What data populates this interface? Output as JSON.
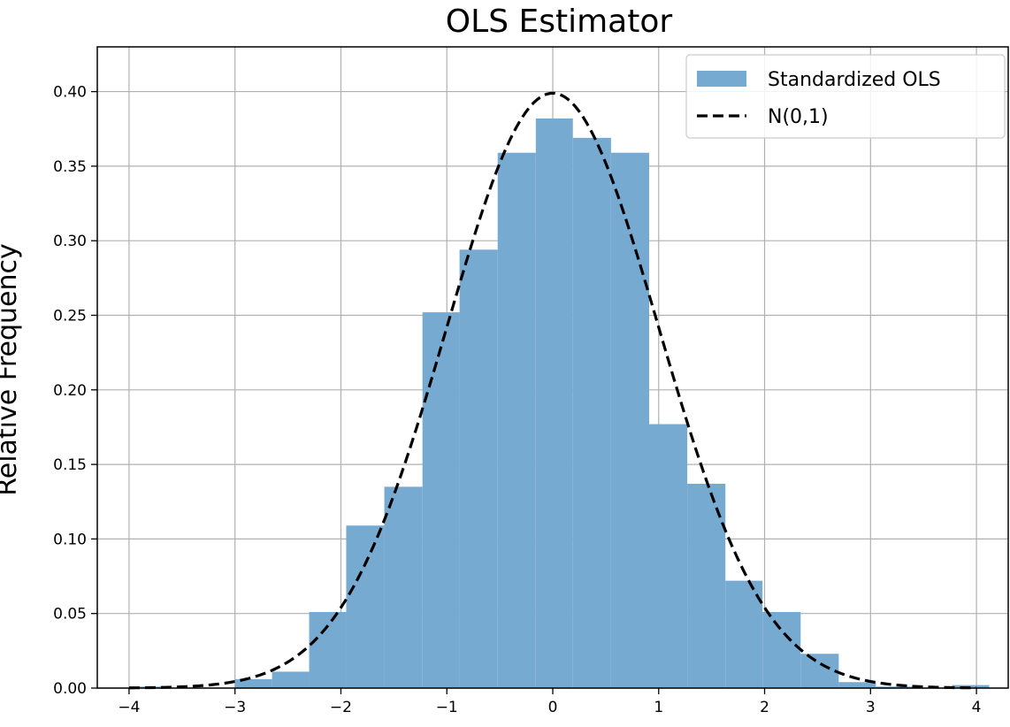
{
  "chart_data": {
    "type": "bar",
    "title": "OLS Estimator",
    "xlabel": "",
    "ylabel": "Relative Frequency",
    "xlim": [
      -4.3,
      4.3
    ],
    "ylim": [
      0,
      0.43
    ],
    "xticks": [
      -4,
      -3,
      -2,
      -1,
      0,
      1,
      2,
      3,
      4
    ],
    "xtick_labels": [
      "−4",
      "−3",
      "−2",
      "−1",
      "0",
      "1",
      "2",
      "3",
      "4"
    ],
    "yticks": [
      0,
      0.05,
      0.1,
      0.15,
      0.2,
      0.25,
      0.3,
      0.35,
      0.4
    ],
    "ytick_labels": [
      "0.00",
      "0.05",
      "0.10",
      "0.15",
      "0.20",
      "0.25",
      "0.30",
      "0.35",
      "0.40"
    ],
    "grid": true,
    "legend_position": "top-right",
    "bin_edges": [
      -4.0,
      -3.64,
      -3.28,
      -2.92,
      -2.56,
      -2.2,
      -1.84,
      -1.48,
      -1.12,
      -0.76,
      -0.4,
      -0.04,
      0.32,
      0.68,
      1.04,
      1.4,
      1.76,
      2.12,
      2.48,
      2.84,
      3.2,
      3.56,
      3.92,
      4.12
    ],
    "series": [
      {
        "name": "Standardized OLS",
        "kind": "histogram",
        "color": "#77aad1",
        "edges": [
          -4.0,
          -3.64,
          -3.28,
          -3.0,
          -2.65,
          -2.3,
          -1.95,
          -1.59,
          -1.23,
          -0.88,
          -0.52,
          -0.16,
          0.19,
          0.55,
          0.91,
          1.27,
          1.63,
          1.98,
          2.34,
          2.7,
          3.05,
          3.41,
          3.77,
          4.12
        ],
        "values": [
          0.001,
          0.0,
          0.0,
          0.006,
          0.011,
          0.051,
          0.109,
          0.135,
          0.252,
          0.294,
          0.359,
          0.382,
          0.369,
          0.359,
          0.177,
          0.137,
          0.072,
          0.051,
          0.023,
          0.004,
          0.001,
          0.0,
          0.002
        ]
      },
      {
        "name": "N(0,1)",
        "kind": "line",
        "color": "#000000",
        "style": "dashed",
        "x_range": [
          -4,
          4
        ],
        "function": "standard-normal-pdf"
      }
    ]
  }
}
